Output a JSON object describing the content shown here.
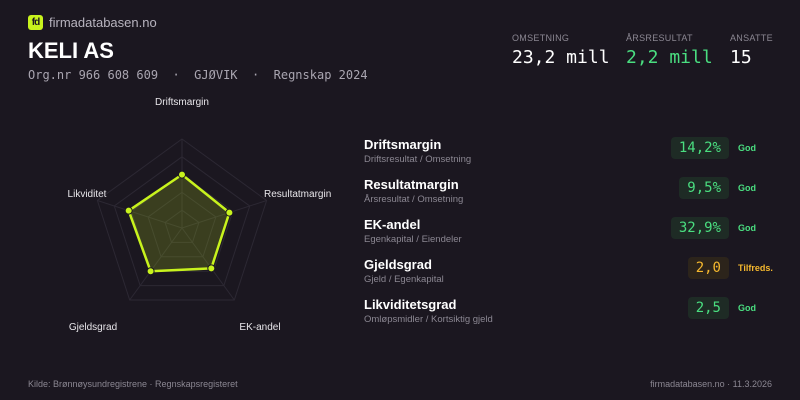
{
  "brand": {
    "logo_text": "fd",
    "name": "firmadatabasen.no",
    "accent": "#c8f31d"
  },
  "company": {
    "name": "KELI AS",
    "subtitle": "Org.nr 966 608 609  ·  GJØVIK  ·  Regnskap 2024"
  },
  "kpis": [
    {
      "label": "OMSETNING",
      "value": "23,2 mill",
      "color": "#ffffff"
    },
    {
      "label": "ÅRSRESULTAT",
      "value": "2,2 mill",
      "color": "#4ade80"
    },
    {
      "label": "ANSATTE",
      "value": "15",
      "color": "#ffffff"
    }
  ],
  "chart_data": {
    "type": "radar",
    "axes": [
      "Driftsmargin",
      "Resultatmargin",
      "EK-andel",
      "Gjeldsgrad",
      "Likviditet"
    ],
    "scores": [
      0.6,
      0.56,
      0.56,
      0.6,
      0.63
    ],
    "rings": 5,
    "color": "#c8f31d"
  },
  "metrics": [
    {
      "name": "Driftsmargin",
      "formula": "Driftsresultat / Omsetning",
      "value": "14,2%",
      "status": "God",
      "tone": "good"
    },
    {
      "name": "Resultatmargin",
      "formula": "Årsresultat / Omsetning",
      "value": "9,5%",
      "status": "God",
      "tone": "good"
    },
    {
      "name": "EK-andel",
      "formula": "Egenkapital / Eiendeler",
      "value": "32,9%",
      "status": "God",
      "tone": "good"
    },
    {
      "name": "Gjeldsgrad",
      "formula": "Gjeld / Egenkapital",
      "value": "2,0",
      "status": "Tilfreds.",
      "tone": "ok"
    },
    {
      "name": "Likviditetsgrad",
      "formula": "Omløpsmidler / Kortsiktig gjeld",
      "value": "2,5",
      "status": "God",
      "tone": "good"
    }
  ],
  "tones": {
    "good": {
      "fg": "#4ade80",
      "bg": "#1e2b25"
    },
    "ok": {
      "fg": "#f5b82e",
      "bg": "#2c241b"
    }
  },
  "footer": {
    "source": "Kilde: Brønnøysundregistrene · Regnskapsregisteret",
    "site": "firmadatabasen.no · 11.3.2026"
  }
}
